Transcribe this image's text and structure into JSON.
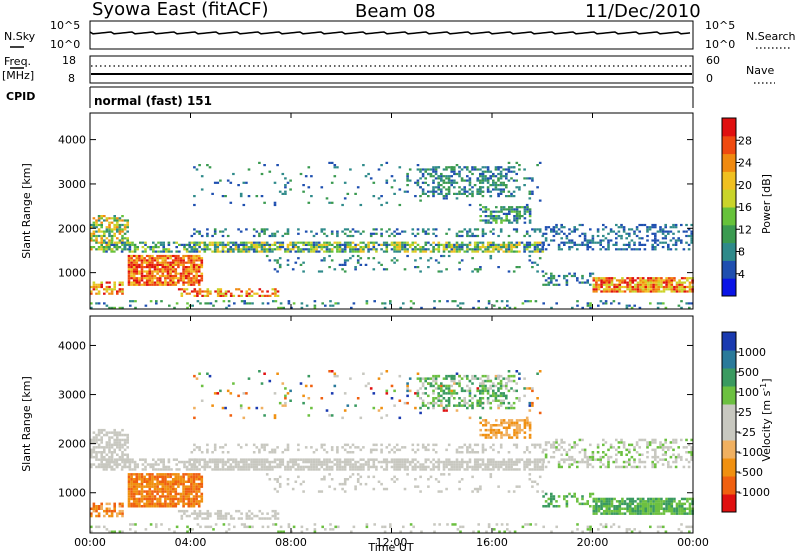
{
  "header": {
    "station": "Syowa East (fitACF)",
    "beam": "Beam 08",
    "date": "11/Dec/2010"
  },
  "colors": {
    "power_scale": [
      "#0a14e6",
      "#1f4fb0",
      "#2f8a8a",
      "#3a9a50",
      "#66c23a",
      "#c9d42a",
      "#f0c020",
      "#f08a10",
      "#ef4a10",
      "#e01010"
    ],
    "velocity_scale": [
      "#e01010",
      "#f06010",
      "#f09010",
      "#f0b060",
      "#c8c8c0",
      "#c8c8c0",
      "#6cc040",
      "#3a9a60",
      "#2a7a9a",
      "#1a3ab0"
    ]
  },
  "top_panels": {
    "nsky_label": "N.Sky",
    "nsky_ticks": [
      "10^5",
      "10^0"
    ],
    "nsearch_label": "N.Search",
    "nsearch_ticks": [
      "10^5",
      "10^0"
    ],
    "freq_label": "Freq.",
    "freq_unit": "[MHz]",
    "freq_ticks": [
      "18",
      "8"
    ],
    "nave_label": "Nave",
    "nave_ticks": [
      "60",
      "0"
    ],
    "cpid_label": "CPID",
    "cpid_text": "normal (fast) 151"
  },
  "chart_data": [
    {
      "type": "heatmap",
      "quantity": "Power",
      "ylabel": "Slant Range [km]",
      "ylim": [
        180,
        4600
      ],
      "yticks": [
        1000,
        2000,
        3000,
        4000
      ],
      "colorbar_label": "Power [dB]",
      "colorbar_ticks": [
        "4",
        "8",
        "12",
        "16",
        "20",
        "24",
        "28"
      ],
      "colorbar_range": [
        0,
        30
      ]
    },
    {
      "type": "heatmap",
      "quantity": "Velocity",
      "ylabel": "Slant Range [km]",
      "ylim": [
        180,
        4600
      ],
      "yticks": [
        1000,
        2000,
        3000,
        4000
      ],
      "colorbar_label": "Velocity [m s",
      "colorbar_label_sup": "-1",
      "colorbar_label_end": "]",
      "colorbar_ticks": [
        "-1000",
        "-500",
        "-100",
        "-25",
        "25",
        "100",
        "500",
        "1000"
      ],
      "colorbar_range": [
        -1200,
        1200
      ]
    }
  ],
  "xaxis": {
    "label": "Time UT",
    "ticks": [
      "00:00",
      "04:00",
      "08:00",
      "12:00",
      "16:00",
      "20:00",
      "00:00"
    ],
    "range_hours": [
      0,
      24
    ]
  }
}
